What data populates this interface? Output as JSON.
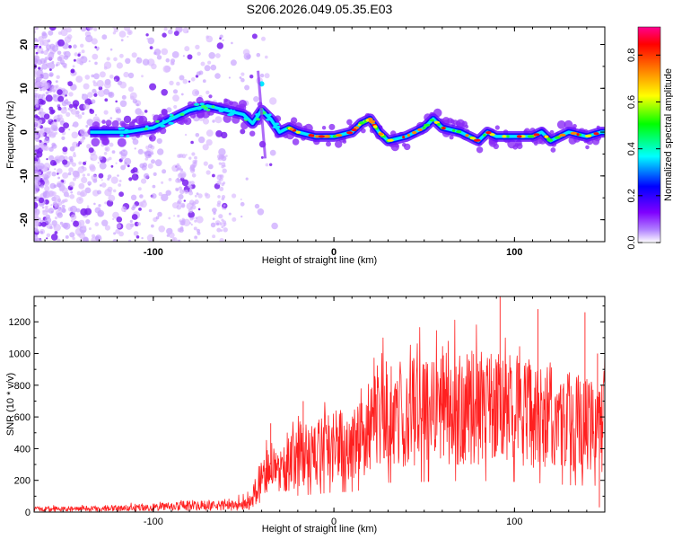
{
  "title": "S206.2026.049.05.35.E03",
  "chart_data": [
    {
      "type": "heatmap",
      "name": "spectrogram",
      "xlabel": "Height of straight line (km)",
      "ylabel": "Frequency (Hz)",
      "xlim": [
        -166,
        150
      ],
      "ylim": [
        -25,
        24
      ],
      "x_ticks": [
        -100,
        0,
        100
      ],
      "y_ticks": [
        -20,
        -10,
        0,
        10,
        20
      ],
      "colorbar": {
        "label": "Normalized spectral amplitude",
        "range": [
          0.0,
          0.92
        ],
        "ticks": [
          0.0,
          0.2,
          0.4,
          0.6,
          0.8
        ],
        "colormap": [
          "#ffffff",
          "#7f00ff",
          "#0000ff",
          "#00ffff",
          "#00ff00",
          "#ffff00",
          "#ff8000",
          "#ff0000",
          "#ff00a0"
        ]
      },
      "ridge": {
        "description": "dominant frequency track (Hz) vs height (km)",
        "x": [
          -130,
          -115,
          -100,
          -90,
          -80,
          -70,
          -60,
          -50,
          -45,
          -40,
          -35,
          -30,
          -25,
          -20,
          -10,
          0,
          10,
          15,
          20,
          25,
          30,
          40,
          50,
          55,
          60,
          70,
          80,
          85,
          90,
          100,
          110,
          115,
          120,
          130,
          140,
          148
        ],
        "y": [
          0,
          0,
          1,
          3,
          5,
          6,
          5,
          4,
          2,
          5,
          3,
          0,
          1,
          0,
          -1,
          -1,
          0,
          2,
          3,
          0,
          -2,
          -1,
          1,
          3,
          1,
          0,
          -2,
          0,
          -1,
          -1,
          -1,
          0,
          -2,
          0,
          -1,
          0
        ]
      }
    },
    {
      "type": "line",
      "name": "snr",
      "xlabel": "Height of straight line (km)",
      "ylabel": "SNR (10 * v/v)",
      "xlim": [
        -166,
        150
      ],
      "ylim": [
        0,
        1360
      ],
      "x_ticks": [
        -100,
        0,
        100
      ],
      "y_ticks": [
        0,
        200,
        400,
        600,
        800,
        1000,
        1200
      ],
      "color": "#ff2020",
      "envelope": {
        "description": "approximate mean SNR trend vs height (km)",
        "x": [
          -166,
          -140,
          -120,
          -100,
          -80,
          -60,
          -50,
          -45,
          -40,
          -35,
          -30,
          -20,
          -10,
          0,
          10,
          20,
          25,
          30,
          40,
          50,
          60,
          70,
          80,
          90,
          100,
          110,
          120,
          130,
          140,
          150
        ],
        "y": [
          20,
          20,
          25,
          30,
          40,
          40,
          50,
          90,
          200,
          300,
          250,
          350,
          380,
          420,
          430,
          500,
          600,
          620,
          630,
          640,
          650,
          660,
          660,
          650,
          640,
          620,
          600,
          570,
          560,
          560
        ]
      },
      "peaks": {
        "x": [
          -35,
          -17,
          29,
          92,
          113,
          139,
          146
        ],
        "y": [
          560,
          700,
          950,
          1360,
          1280,
          1260,
          1000
        ]
      }
    }
  ]
}
